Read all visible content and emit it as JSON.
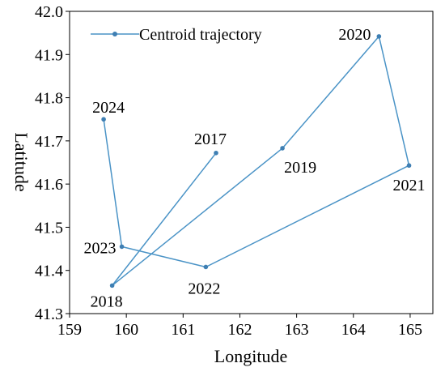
{
  "chart_data": {
    "type": "line",
    "title": "",
    "xlabel": "Longitude",
    "ylabel": "Latitude",
    "xlim": [
      159,
      165.4
    ],
    "ylim": [
      41.3,
      42.0
    ],
    "xticks": [
      "159",
      "160",
      "161",
      "162",
      "163",
      "164",
      "165"
    ],
    "yticks": [
      "41.3",
      "41.4",
      "41.5",
      "41.6",
      "41.7",
      "41.8",
      "41.9",
      "42.0"
    ],
    "grid": false,
    "legend_position": "top-left",
    "series": [
      {
        "name": "Centroid trajectory",
        "color": "#4a93c6",
        "points": [
          {
            "label": "2017",
            "x": 161.58,
            "y": 41.672
          },
          {
            "label": "2018",
            "x": 159.75,
            "y": 41.365
          },
          {
            "label": "2019",
            "x": 162.75,
            "y": 41.683
          },
          {
            "label": "2020",
            "x": 164.45,
            "y": 41.942
          },
          {
            "label": "2021",
            "x": 164.98,
            "y": 41.643
          },
          {
            "label": "2022",
            "x": 161.4,
            "y": 41.408
          },
          {
            "label": "2023",
            "x": 159.92,
            "y": 41.455
          },
          {
            "label": "2024",
            "x": 159.6,
            "y": 41.75
          }
        ]
      }
    ]
  }
}
